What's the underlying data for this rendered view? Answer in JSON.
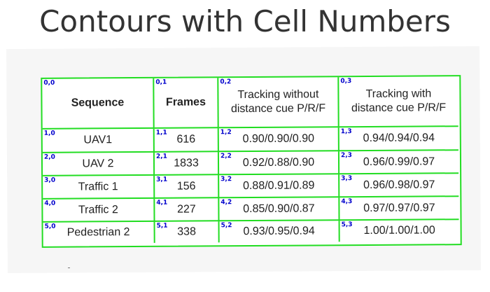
{
  "title": "Contours with Cell Numbers",
  "table": {
    "header": [
      {
        "idx": "0,0",
        "text": "Sequence"
      },
      {
        "idx": "0,1",
        "text": "Frames"
      },
      {
        "idx": "0,2",
        "text": "Tracking without distance cue P/R/F"
      },
      {
        "idx": "0,3",
        "text": "Tracking with distance cue P/R/F"
      }
    ],
    "rows": [
      [
        {
          "idx": "1,0",
          "text": "UAV1"
        },
        {
          "idx": "1,1",
          "text": "616"
        },
        {
          "idx": "1,2",
          "text": "0.90/0.90/0.90"
        },
        {
          "idx": "1,3",
          "text": "0.94/0.94/0.94"
        }
      ],
      [
        {
          "idx": "2,0",
          "text": "UAV 2"
        },
        {
          "idx": "2,1",
          "text": "1833"
        },
        {
          "idx": "2,2",
          "text": "0.92/0.88/0.90"
        },
        {
          "idx": "2,3",
          "text": "0.96/0.99/0.97"
        }
      ],
      [
        {
          "idx": "3,0",
          "text": "Traffic 1"
        },
        {
          "idx": "3,1",
          "text": "156"
        },
        {
          "idx": "3,2",
          "text": "0.88/0.91/0.89"
        },
        {
          "idx": "3,3",
          "text": "0.96/0.98/0.97"
        }
      ],
      [
        {
          "idx": "4,0",
          "text": "Traffic 2"
        },
        {
          "idx": "4,1",
          "text": "227"
        },
        {
          "idx": "4,2",
          "text": "0.85/0.90/0.87"
        },
        {
          "idx": "4,3",
          "text": "0.97/0.97/0.97"
        }
      ],
      [
        {
          "idx": "5,0",
          "text": "Pedestrian 2"
        },
        {
          "idx": "5,1",
          "text": "338"
        },
        {
          "idx": "5,2",
          "text": "0.93/0.95/0.94"
        },
        {
          "idx": "5,3",
          "text": "1.00/1.00/1.00"
        }
      ]
    ]
  },
  "colors": {
    "contour": "#22dd22",
    "cell_index": "#0000cc"
  }
}
